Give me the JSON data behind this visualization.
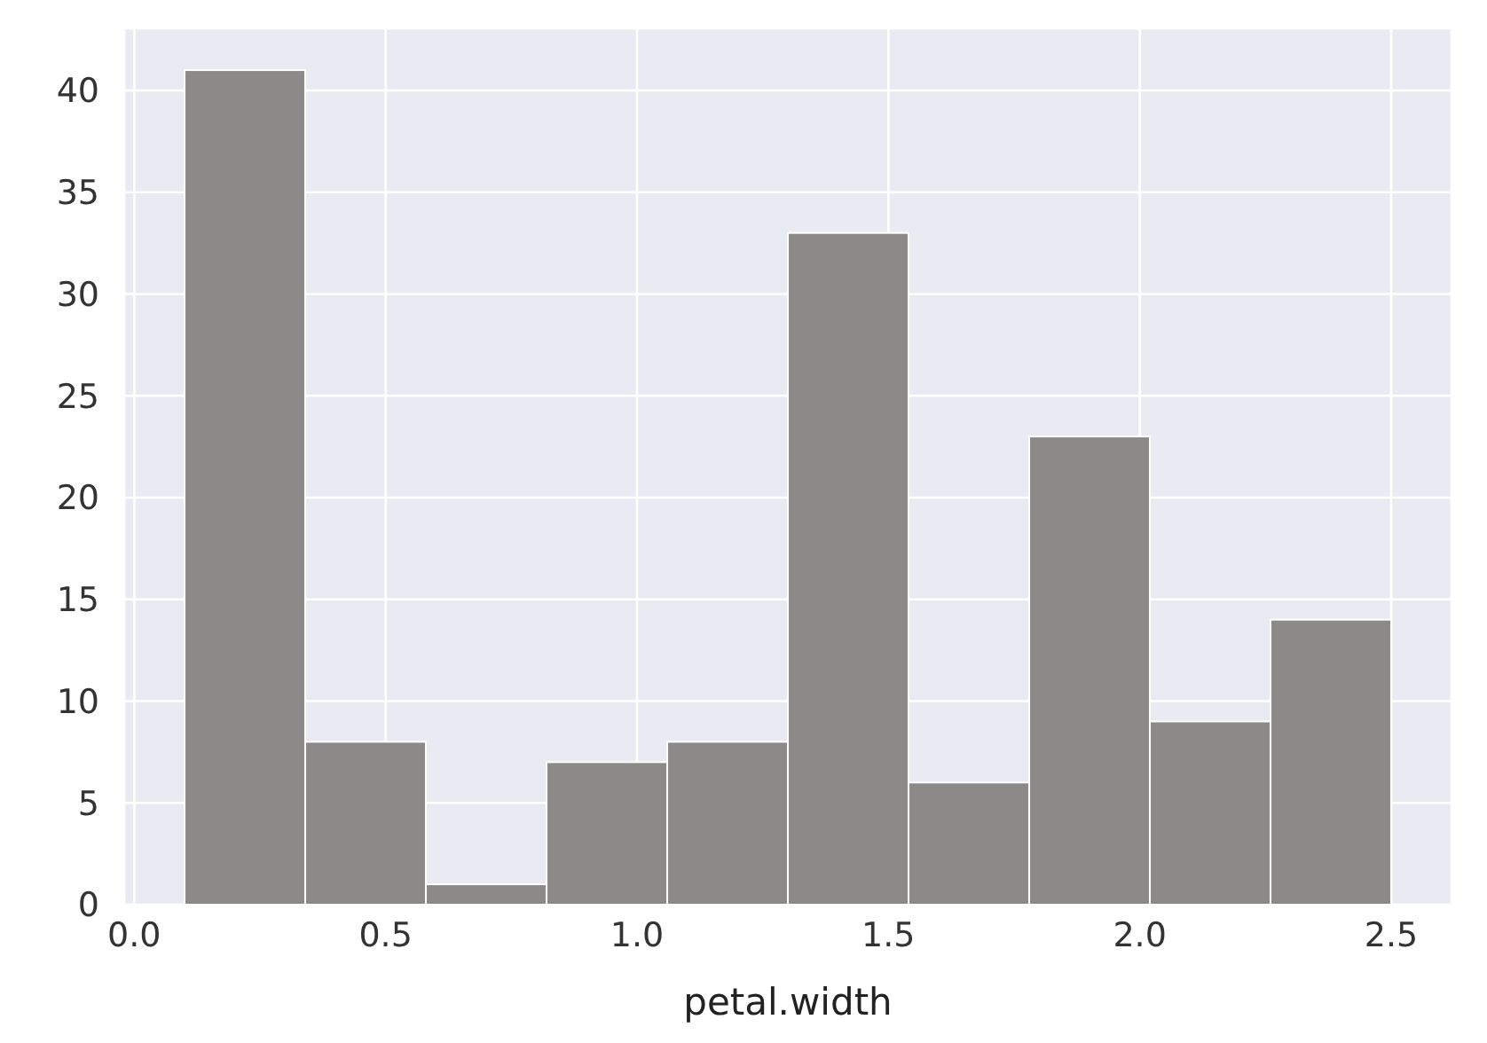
{
  "chart_data": {
    "type": "histogram",
    "xlabel": "petal.width",
    "bins": [
      0.1,
      0.34,
      0.58,
      0.82,
      1.06,
      1.3,
      1.54,
      1.78,
      2.02,
      2.26,
      2.5
    ],
    "values": [
      41,
      8,
      1,
      7,
      8,
      33,
      6,
      23,
      9,
      14
    ],
    "color": "#8b8a88",
    "xlim": [
      -0.02,
      2.62
    ],
    "xticks": [
      {
        "value": 0,
        "label": "0.0"
      },
      0.5,
      {
        "value": 1,
        "label": "1.0"
      },
      1.5,
      {
        "value": 2,
        "label": "2.0"
      },
      2.5
    ],
    "ylim": [
      0,
      43.05
    ],
    "yticks": [
      0,
      5,
      10,
      15,
      20,
      25,
      30,
      35,
      40
    ],
    "grid": true
  }
}
